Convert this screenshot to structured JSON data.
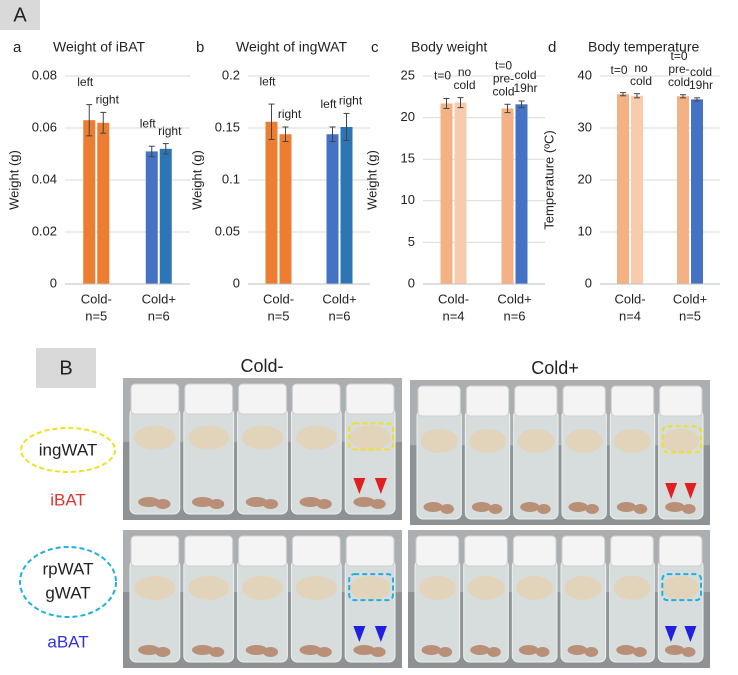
{
  "panels": {
    "A": "A",
    "B": "B"
  },
  "chart_data": [
    {
      "type": "bar",
      "panel": "a",
      "title": "Weight of iBAT",
      "y_label": "Weight (g)",
      "categories": [
        "Cold-",
        "Cold+"
      ],
      "group_n": [
        "n=5",
        "n=6"
      ],
      "ylim": [
        0,
        0.08
      ],
      "yticks": [
        0,
        0.02,
        0.04,
        0.06,
        0.08
      ],
      "grid": true,
      "series": [
        {
          "values": [
            0.063,
            0.051
          ],
          "errors": [
            0.006,
            0.002
          ],
          "colors": [
            "#ed7d31",
            "#4472c4"
          ],
          "labels": [
            [
              "left"
            ],
            [
              "left"
            ]
          ]
        },
        {
          "values": [
            0.062,
            0.052
          ],
          "errors": [
            0.004,
            0.002
          ],
          "colors": [
            "#ed7d31",
            "#2e75b6"
          ],
          "labels": [
            [
              "right"
            ],
            [
              "right"
            ]
          ]
        }
      ]
    },
    {
      "type": "bar",
      "panel": "b",
      "title": "Weight of ingWAT",
      "y_label": "Weight (g)",
      "categories": [
        "Cold-",
        "Cold+"
      ],
      "group_n": [
        "n=5",
        "n=6"
      ],
      "ylim": [
        0,
        0.2
      ],
      "yticks": [
        0,
        0.05,
        0.1,
        0.15,
        0.2
      ],
      "grid": true,
      "series": [
        {
          "values": [
            0.156,
            0.144
          ],
          "errors": [
            0.017,
            0.007
          ],
          "colors": [
            "#ed7d31",
            "#4472c4"
          ],
          "labels": [
            [
              "left"
            ],
            [
              "left"
            ]
          ]
        },
        {
          "values": [
            0.144,
            0.151
          ],
          "errors": [
            0.007,
            0.013
          ],
          "colors": [
            "#ed7d31",
            "#2e75b6"
          ],
          "labels": [
            [
              "right"
            ],
            [
              "right"
            ]
          ]
        }
      ]
    },
    {
      "type": "bar",
      "panel": "c",
      "title": "Body weight",
      "y_label": "Weight (g)",
      "categories": [
        "Cold-",
        "Cold+"
      ],
      "group_n": [
        "n=4",
        "n=6"
      ],
      "ylim": [
        0,
        25
      ],
      "yticks": [
        0,
        5,
        10,
        15,
        20,
        25
      ],
      "grid": true,
      "series": [
        {
          "values": [
            21.7,
            21.1
          ],
          "errors": [
            0.6,
            0.5
          ],
          "colors": [
            "#f4b183",
            "#f4b183"
          ],
          "labels": [
            [
              "t=0"
            ],
            [
              "t=0",
              "pre-",
              "cold"
            ]
          ]
        },
        {
          "values": [
            21.8,
            21.6
          ],
          "errors": [
            0.6,
            0.4
          ],
          "colors": [
            "#f8cbad",
            "#4472c4"
          ],
          "labels": [
            [
              "no",
              "cold"
            ],
            [
              "cold",
              "19hr"
            ]
          ]
        }
      ]
    },
    {
      "type": "bar",
      "panel": "d",
      "title": "Body temperature",
      "y_label": "Temperature (ºC)",
      "categories": [
        "Cold-",
        "Cold+"
      ],
      "group_n": [
        "n=4",
        "n=5"
      ],
      "ylim": [
        0,
        40
      ],
      "yticks": [
        0,
        10,
        20,
        30,
        40
      ],
      "grid": true,
      "series": [
        {
          "values": [
            36.5,
            36.1
          ],
          "errors": [
            0.3,
            0.3
          ],
          "colors": [
            "#f4b183",
            "#f4b183"
          ],
          "labels": [
            [
              "t=0"
            ],
            [
              "t=0",
              "pre-",
              "cold"
            ]
          ]
        },
        {
          "values": [
            36.2,
            35.5
          ],
          "errors": [
            0.4,
            0.3
          ],
          "colors": [
            "#f8cbad",
            "#4472c4"
          ],
          "labels": [
            [
              "no",
              "cold"
            ],
            [
              "cold",
              "19hr"
            ]
          ]
        }
      ]
    }
  ],
  "photos": {
    "column_titles": [
      "Cold-",
      "Cold+"
    ],
    "top_labels": [
      "ingWAT"
    ],
    "top_sublabel": "iBAT",
    "bottom_labels": [
      "rpWAT",
      "gWAT"
    ],
    "bottom_sublabel": "aBAT"
  }
}
